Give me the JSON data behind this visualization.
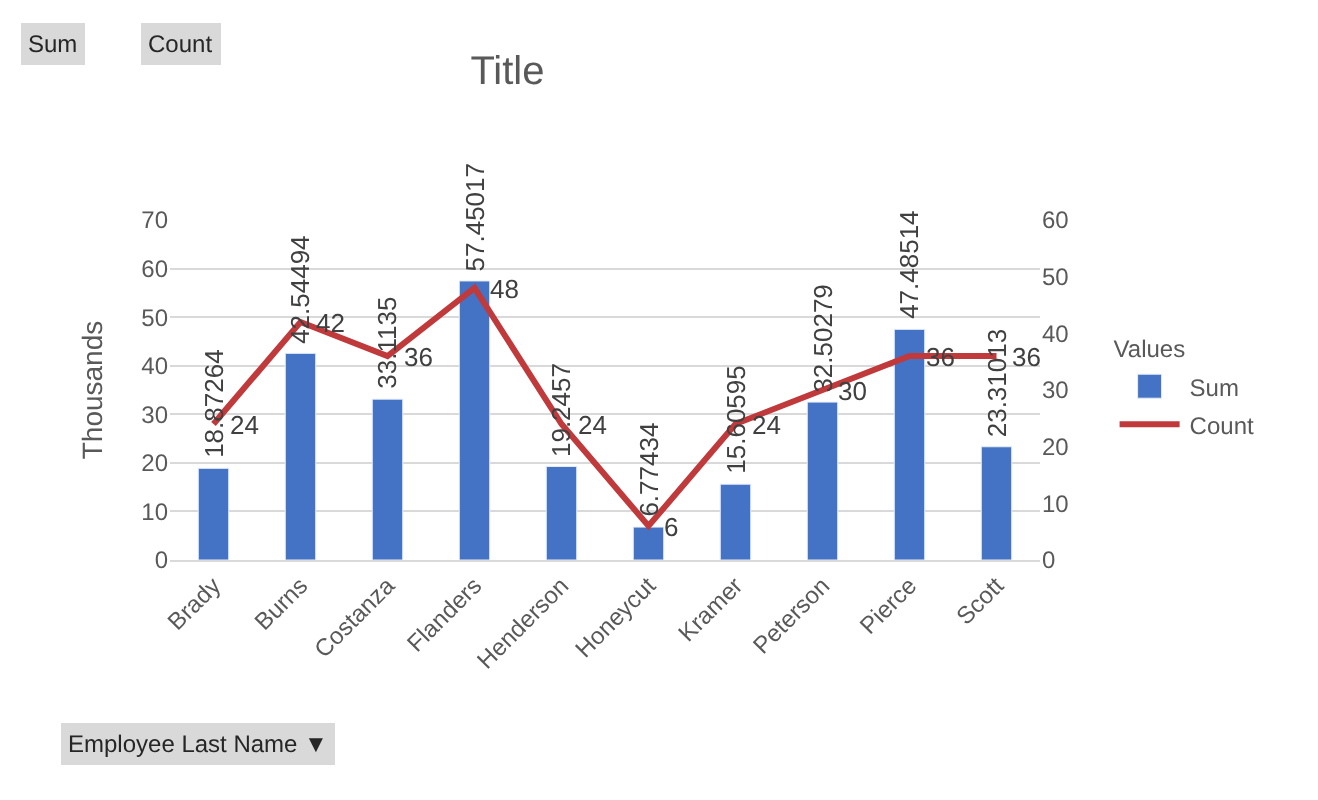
{
  "chart_data": {
    "type": "bar",
    "title": "Title",
    "ylabel": "Thousands",
    "categories": [
      "Brady",
      "Burns",
      "Costanza",
      "Flanders",
      "Henderson",
      "Honeycut",
      "Kramer",
      "Peterson",
      "Pierce",
      "Scott"
    ],
    "series": [
      {
        "name": "Sum",
        "color": "#4472c4",
        "values": [
          18.87264,
          42.54494,
          33.1135,
          57.45017,
          19.2457,
          6.77434,
          15.60595,
          32.50279,
          47.48514,
          23.31013
        ]
      },
      {
        "name": "Count",
        "type": "line",
        "axis": "y2",
        "color": "#c0393b",
        "values": [
          24,
          42,
          36,
          48,
          24,
          6,
          24,
          30,
          36,
          36
        ]
      }
    ],
    "ylim": [
      0,
      70
    ],
    "yticks": [
      0,
      10,
      20,
      30,
      40,
      50,
      60,
      70
    ],
    "y2lim": [
      0,
      60
    ],
    "y2ticks": [
      0,
      10,
      20,
      30,
      40,
      50,
      60
    ],
    "legend_title": "Values",
    "legend": "right",
    "grid": "y",
    "marker": "none",
    "line_style": "solid",
    "data_labels": true,
    "annotations": [
      "Sum",
      "Count",
      "Employee Last Name ▼"
    ]
  }
}
